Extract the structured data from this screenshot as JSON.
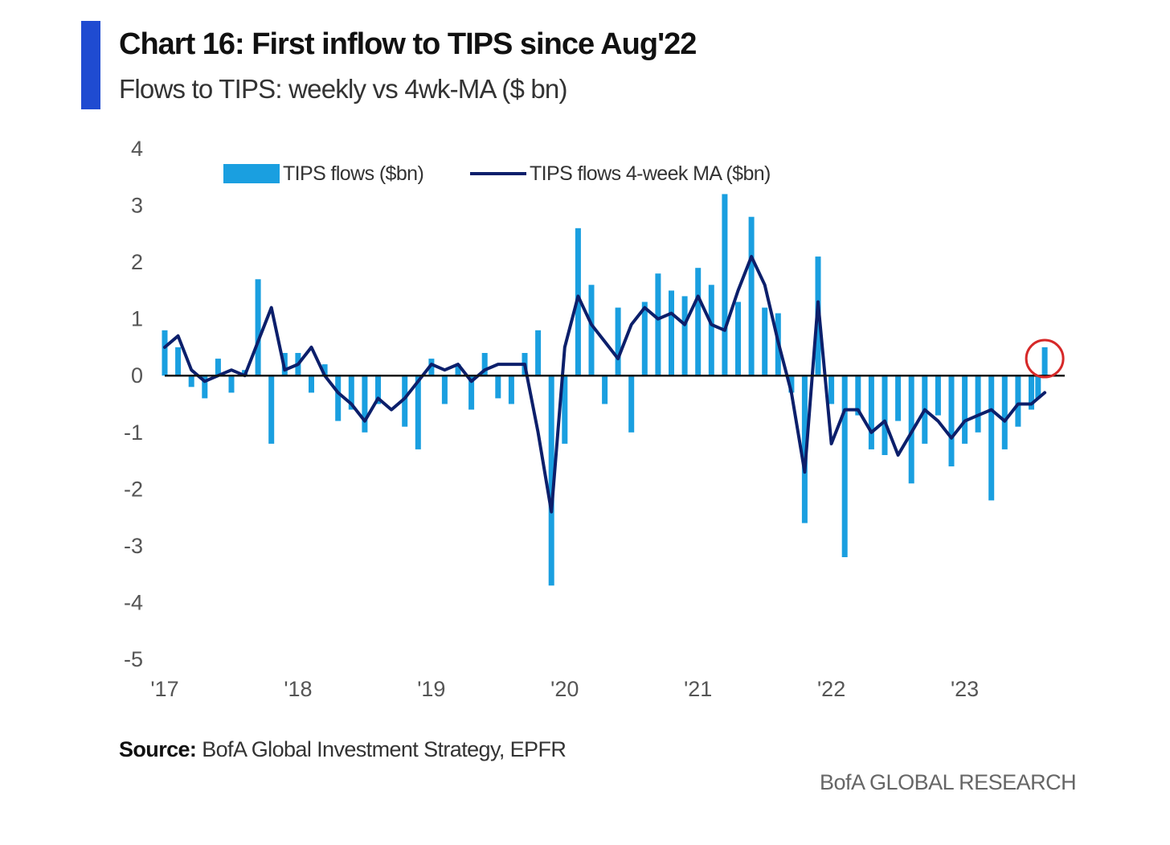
{
  "header": {
    "title": "Chart 16: First inflow to TIPS since Aug'22",
    "subtitle": "Flows to TIPS: weekly vs 4wk-MA ($ bn)"
  },
  "footer": {
    "source_label": "Source:",
    "source_text": "BofA Global Investment Strategy, EPFR",
    "brand": "BofA GLOBAL RESEARCH"
  },
  "colors": {
    "accent": "#1f4bd1",
    "bars": "#1a9fe0",
    "ma_line": "#0c1f6b",
    "highlight_circle": "#d62828"
  },
  "chart_data": {
    "type": "bar",
    "title": "Chart 16: First inflow to TIPS since Aug'22",
    "subtitle": "Flows to TIPS: weekly vs 4wk-MA ($ bn)",
    "xlabel": "",
    "ylabel": "",
    "ylim": [
      -5,
      4
    ],
    "xlim": [
      2017.0,
      2023.75
    ],
    "y_ticks": [
      "4",
      "3",
      "2",
      "1",
      "0",
      "-1",
      "-2",
      "-3",
      "-4",
      "-5"
    ],
    "x_ticks": [
      "'17",
      "'18",
      "'19",
      "'20",
      "'21",
      "'22",
      "'23"
    ],
    "grid": false,
    "legend": {
      "position": "top",
      "entries": [
        "TIPS flows ($bn)",
        "TIPS flows 4-week MA ($bn)"
      ]
    },
    "annotation": "red circle around latest weekly inflow",
    "series": [
      {
        "name": "TIPS flows ($bn)",
        "kind": "bar",
        "x": [
          2017.0,
          2017.1,
          2017.2,
          2017.3,
          2017.4,
          2017.5,
          2017.6,
          2017.7,
          2017.8,
          2017.9,
          2018.0,
          2018.1,
          2018.2,
          2018.3,
          2018.4,
          2018.5,
          2018.6,
          2018.7,
          2018.8,
          2018.9,
          2019.0,
          2019.1,
          2019.2,
          2019.3,
          2019.4,
          2019.5,
          2019.6,
          2019.7,
          2019.8,
          2019.9,
          2020.0,
          2020.1,
          2020.2,
          2020.3,
          2020.4,
          2020.5,
          2020.6,
          2020.7,
          2020.8,
          2020.9,
          2021.0,
          2021.1,
          2021.2,
          2021.3,
          2021.4,
          2021.5,
          2021.6,
          2021.7,
          2021.8,
          2021.9,
          2022.0,
          2022.1,
          2022.2,
          2022.3,
          2022.4,
          2022.5,
          2022.6,
          2022.7,
          2022.8,
          2022.9,
          2023.0,
          2023.1,
          2023.2,
          2023.3,
          2023.4,
          2023.5,
          2023.55,
          2023.6
        ],
        "values": [
          0.8,
          0.5,
          -0.2,
          -0.4,
          0.3,
          -0.3,
          0.1,
          1.7,
          -1.2,
          0.4,
          0.4,
          -0.3,
          0.2,
          -0.8,
          -0.6,
          -1.0,
          -0.5,
          0.0,
          -0.9,
          -1.3,
          0.3,
          -0.5,
          0.2,
          -0.6,
          0.4,
          -0.4,
          -0.5,
          0.4,
          0.8,
          -3.7,
          -1.2,
          2.6,
          1.6,
          -0.5,
          1.2,
          -1.0,
          1.3,
          1.8,
          1.5,
          1.4,
          1.9,
          1.6,
          3.2,
          1.3,
          2.8,
          1.2,
          1.1,
          -0.3,
          -2.6,
          2.1,
          -0.5,
          -3.2,
          -0.7,
          -1.3,
          -1.4,
          -0.8,
          -1.9,
          -1.2,
          -0.7,
          -1.6,
          -1.2,
          -1.0,
          -2.2,
          -1.3,
          -0.9,
          -0.6,
          -0.4,
          0.5
        ]
      },
      {
        "name": "TIPS flows 4-week MA ($bn)",
        "kind": "line",
        "x": [
          2017.0,
          2017.1,
          2017.2,
          2017.3,
          2017.4,
          2017.5,
          2017.6,
          2017.7,
          2017.8,
          2017.9,
          2018.0,
          2018.1,
          2018.2,
          2018.3,
          2018.4,
          2018.5,
          2018.6,
          2018.7,
          2018.8,
          2018.9,
          2019.0,
          2019.1,
          2019.2,
          2019.3,
          2019.4,
          2019.5,
          2019.6,
          2019.7,
          2019.8,
          2019.9,
          2020.0,
          2020.1,
          2020.2,
          2020.3,
          2020.4,
          2020.5,
          2020.6,
          2020.7,
          2020.8,
          2020.9,
          2021.0,
          2021.1,
          2021.2,
          2021.3,
          2021.4,
          2021.5,
          2021.6,
          2021.7,
          2021.8,
          2021.9,
          2022.0,
          2022.1,
          2022.2,
          2022.3,
          2022.4,
          2022.5,
          2022.6,
          2022.7,
          2022.8,
          2022.9,
          2023.0,
          2023.1,
          2023.2,
          2023.3,
          2023.4,
          2023.5,
          2023.55,
          2023.6
        ],
        "values": [
          0.5,
          0.7,
          0.1,
          -0.1,
          0.0,
          0.1,
          0.0,
          0.6,
          1.2,
          0.1,
          0.2,
          0.5,
          0.0,
          -0.3,
          -0.5,
          -0.8,
          -0.4,
          -0.6,
          -0.4,
          -0.1,
          0.2,
          0.1,
          0.2,
          -0.1,
          0.1,
          0.2,
          0.2,
          0.2,
          -1.0,
          -2.4,
          0.5,
          1.4,
          0.9,
          0.6,
          0.3,
          0.9,
          1.2,
          1.0,
          1.1,
          0.9,
          1.4,
          0.9,
          0.8,
          1.5,
          2.1,
          1.6,
          0.6,
          -0.3,
          -1.7,
          1.3,
          -1.2,
          -0.6,
          -0.6,
          -1.0,
          -0.8,
          -1.4,
          -1.0,
          -0.6,
          -0.8,
          -1.1,
          -0.8,
          -0.7,
          -0.6,
          -0.8,
          -0.5,
          -0.5,
          -0.4,
          -0.3
        ]
      }
    ]
  }
}
